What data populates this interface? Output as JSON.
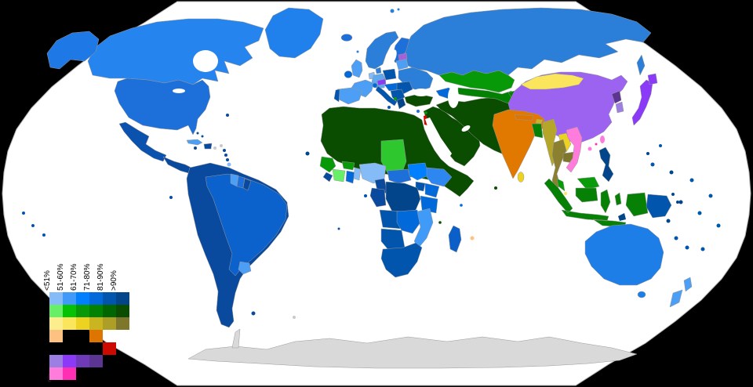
{
  "canvas": {
    "background": "#000000",
    "ocean": "#FFFFFF",
    "outline": "#B5B5B5",
    "country_border": "#999999"
  },
  "legend": {
    "percent_labels": [
      "<51%",
      "51-60%",
      "61-70%",
      "71-80%",
      "81-90%",
      ">90%"
    ],
    "rows": [
      {
        "id": "christianity",
        "cells": [
          {
            "col": 0,
            "color": "#85BCF7"
          },
          {
            "col": 1,
            "color": "#3F9BF7"
          },
          {
            "col": 2,
            "color": "#007FFF"
          },
          {
            "col": 3,
            "color": "#0169D9"
          },
          {
            "col": 4,
            "color": "#0155AC"
          },
          {
            "col": 5,
            "color": "#02458A"
          }
        ]
      },
      {
        "id": "islam",
        "cells": [
          {
            "col": 0,
            "color": "#68EF68"
          },
          {
            "col": 1,
            "color": "#06C106"
          },
          {
            "col": 2,
            "color": "#079907"
          },
          {
            "col": 3,
            "color": "#028102"
          },
          {
            "col": 4,
            "color": "#016601"
          },
          {
            "col": 5,
            "color": "#0B4D00"
          }
        ]
      },
      {
        "id": "buddhism",
        "cells": [
          {
            "col": 0,
            "color": "#FDEE8D"
          },
          {
            "col": 1,
            "color": "#FAE55C"
          },
          {
            "col": 2,
            "color": "#EDD222"
          },
          {
            "col": 3,
            "color": "#C9B51F"
          },
          {
            "col": 4,
            "color": "#AC9E26"
          },
          {
            "col": 5,
            "color": "#7E762B"
          }
        ]
      },
      {
        "id": "hinduism",
        "cells": [
          {
            "col": 0,
            "color": "#FDC182"
          },
          {
            "col": 3,
            "color": "#DD7500"
          }
        ]
      },
      {
        "id": "judaism",
        "cells": [
          {
            "col": 4,
            "color": "#CC0A00"
          }
        ]
      },
      {
        "id": "non-religious",
        "cells": [
          {
            "col": 0,
            "color": "#9D7FE3"
          },
          {
            "col": 1,
            "color": "#8B3BF8"
          },
          {
            "col": 2,
            "color": "#6E3AB8"
          },
          {
            "col": 3,
            "color": "#5C3593"
          }
        ]
      },
      {
        "id": "folk-religion",
        "cells": [
          {
            "col": 0,
            "color": "#FF7BDC"
          },
          {
            "col": 1,
            "color": "#FF2FB4"
          }
        ]
      }
    ]
  },
  "map": {
    "regions": {
      "ocean": "#FFFFFF",
      "antarctica": "#D9D9D9",
      "greenland": "#2080EC",
      "canada": "#2584EE",
      "alaska": "#1E78E6",
      "usa": "#1D6FD9",
      "mexico": "#0A52AE",
      "central-america": "#0A4A9E",
      "cuba": "#4D9FF5",
      "hispaniola": "#0A4A9E",
      "caribbean": "#0A4A9E",
      "caribbean-gray": "#C9C9C9",
      "trinidad": "#85BCF7",
      "sa-base": "#0A4A9E",
      "brazil": "#0B62CC",
      "guyana": "#4D9FF5",
      "suriname": "#1D6FD9",
      "french-guiana": "#0A4A9E",
      "uruguay": "#4D9FF5",
      "falklands": "#0A4A9E",
      "south-georgia": "#C9C9C9",
      "iceland": "#1D6FD9",
      "norway-sweden": "#2B7FD9",
      "finland": "#1D6FD9",
      "denmark": "#2B7FD9",
      "uk": "#4D9FF5",
      "ireland": "#0169D9",
      "netherlands": "#85BCF7",
      "germany": "#5FA8F0",
      "france": "#4D9FF5",
      "spain": "#4D9FF5",
      "portugal": "#0155AC",
      "switzerland": "#0169D9",
      "italy": "#0155AC",
      "poland": "#0155AC",
      "czechia": "#8B3BF8",
      "austria-hungary": "#0169D9",
      "balkans": "#0155AC",
      "albania": "#0A9B0A",
      "greece": "#02458A",
      "romania-bulgaria": "#0155AC",
      "baltics": "#4D9FF5",
      "estonia": "#A95FD9",
      "belarus-ukraine": "#2B7FD9",
      "russia": "#2B7FD9",
      "svalbard": "#2B7FD9",
      "faroe": "#2B7FD9",
      "cyprus": "#1D6FD9",
      "malta": "#02458A",
      "turkey": "#0B4D00",
      "caucasus": "#0169D9",
      "azerbaijan": "#0B4D00",
      "levant-arabia": "#0B4D00",
      "iran-stan": "#0B4D00",
      "israel": "#CC0A00",
      "lebanon": "#079907",
      "kazakhstan": "#079907",
      "central-asia": "#028102",
      "maldives": "#0B4D00",
      "north-africa": "#0B4D00",
      "chad": "#2EC82E",
      "guinea": "#079907",
      "ivory-coast": "#68EF68",
      "liberia": "#0A4A9E",
      "burkina": "#0A9B0A",
      "ghana": "#0169D9",
      "benin-togo": "#85BCF7",
      "nigeria": "#85BCF7",
      "cameroon": "#0A4A9E",
      "car": "#1D6FD9",
      "south-sudan": "#007FFF",
      "ethiopia": "#2E86F0",
      "kenya": "#0169D9",
      "uganda": "#0155AC",
      "congo-gabon": "#0A4A9E",
      "drc": "#02458A",
      "tanzania": "#0169D9",
      "angola": "#0155AC",
      "zambia-zimbabwe": "#0169D9",
      "mozambique": "#3F9BF7",
      "namibia-botswana": "#0155AC",
      "south-africa": "#0155AC",
      "madagascar": "#0A5FC8",
      "mauritius": "#FDC182",
      "comoros": "#0B4D00",
      "seychelles": "#0169D9",
      "cape-verde": "#02458A",
      "sao-tome": "#0155AC",
      "st-helena": "#0155AC",
      "china": "#9C62F0",
      "mongolia": "#FAE55C",
      "north-korea": "#5C3593",
      "south-korea": "#9D7FE3",
      "japan": "#8B3BF8",
      "taiwan": "#FF7BDC",
      "hong-kong": "#FF2FB4",
      "hainan": "#FF7BDC",
      "india": "#E17800",
      "nepal": "#DD7500",
      "bhutan": "#C9B51F",
      "sri-lanka": "#EDD222",
      "bangladesh": "#068106",
      "myanmar": "#B5A62A",
      "thailand": "#8A8030",
      "laos": "#EDD222",
      "cambodia": "#7E762B",
      "vietnam": "#FF7BDC",
      "malaysia": "#0A9B0A",
      "singapore": "#FAE55C",
      "indonesia": "#068106",
      "timor": "#02458A",
      "philippines": "#02458A",
      "png": "#0155AC",
      "australia": "#1E7EE8",
      "new-zealand": "#4D9FF5",
      "pacific": "#0155AC",
      "pacific-dark": "#02458A",
      "galapagos": "#0A4A9E",
      "bermuda": "#0A4A9E"
    }
  }
}
